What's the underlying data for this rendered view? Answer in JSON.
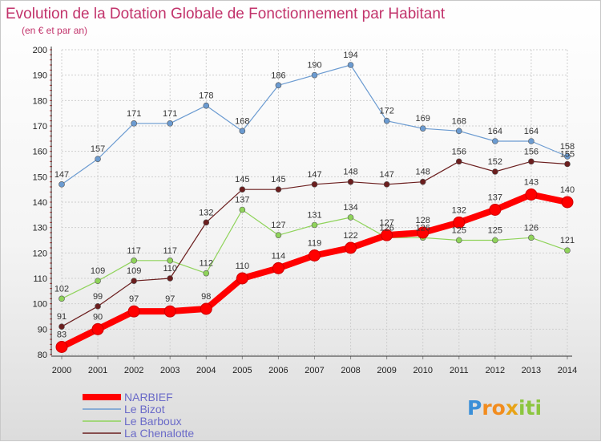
{
  "chart_data": {
    "type": "line",
    "title": "Evolution de la Dotation Globale de Fonctionnement par Habitant",
    "subtitle": "(en € et par an)",
    "xlabel": "",
    "ylabel": "",
    "x": [
      "2000",
      "2001",
      "2002",
      "2003",
      "2004",
      "2005",
      "2006",
      "2007",
      "2008",
      "2009",
      "2010",
      "2011",
      "2012",
      "2013",
      "2014"
    ],
    "ylim": [
      80,
      200
    ],
    "yticks": [
      80,
      90,
      100,
      110,
      120,
      130,
      140,
      150,
      160,
      170,
      180,
      190,
      200
    ],
    "grid": true,
    "legend_position": "bottom-left",
    "series": [
      {
        "name": "NARBIEF",
        "color": "#ff0000",
        "values": [
          83,
          90,
          97,
          97,
          98,
          110,
          114,
          119,
          122,
          127,
          128,
          132,
          137,
          143,
          140
        ]
      },
      {
        "name": "Le Bizot",
        "color": "#6b9bd1",
        "values": [
          147,
          157,
          171,
          171,
          178,
          168,
          186,
          190,
          194,
          172,
          169,
          168,
          164,
          164,
          158
        ]
      },
      {
        "name": "Le Barboux",
        "color": "#8fd35a",
        "values": [
          102,
          109,
          117,
          117,
          112,
          137,
          127,
          131,
          134,
          126,
          126,
          125,
          125,
          126,
          121
        ]
      },
      {
        "name": "La Chenalotte",
        "color": "#6b1e1e",
        "values": [
          91,
          99,
          109,
          110,
          132,
          145,
          145,
          147,
          148,
          147,
          148,
          156,
          152,
          156,
          155
        ]
      }
    ]
  },
  "logo": {
    "text": "Proxiti",
    "letters": [
      "P",
      "r",
      "o",
      "x",
      "i",
      "t",
      "i"
    ],
    "colors": [
      "#3a8fd8",
      "#f28c1e",
      "#f28c1e",
      "#e8a317",
      "#8cc63f",
      "#8cc63f",
      "#8cc63f"
    ]
  }
}
